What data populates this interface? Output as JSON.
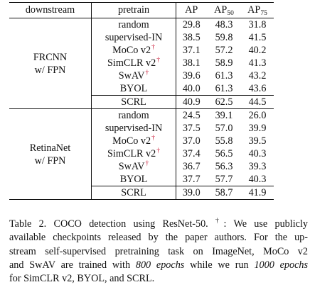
{
  "table": {
    "headers": {
      "downstream": "downstream",
      "pretrain": "pretrain",
      "ap": "AP",
      "ap50_base": "AP",
      "ap50_sub": "50",
      "ap75_base": "AP",
      "ap75_sub": "75"
    },
    "groups": [
      {
        "downstream_line1": "FRCNN",
        "downstream_line2": "w/ FPN",
        "rows": [
          {
            "pretrain": "random",
            "dagger": "",
            "ap": "29.8",
            "ap50": "48.3",
            "ap75": "31.8",
            "bold": false
          },
          {
            "pretrain": "supervised-IN",
            "dagger": "",
            "ap": "38.5",
            "ap50": "59.8",
            "ap75": "41.5",
            "bold": false
          },
          {
            "pretrain": "MoCo v2",
            "dagger": "†",
            "ap": "37.1",
            "ap50": "57.2",
            "ap75": "40.2",
            "bold": false
          },
          {
            "pretrain": "SimCLR v2",
            "dagger": "†",
            "ap": "38.1",
            "ap50": "58.9",
            "ap75": "41.3",
            "bold": false
          },
          {
            "pretrain": "SwAV",
            "dagger": "†",
            "ap": "39.6",
            "ap50": "61.3",
            "ap75": "43.2",
            "bold": false
          },
          {
            "pretrain": "BYOL",
            "dagger": "",
            "ap": "40.0",
            "ap50": "61.3",
            "ap75": "43.6",
            "bold": false
          },
          {
            "pretrain": "SCRL",
            "dagger": "",
            "ap": "40.9",
            "ap50": "62.5",
            "ap75": "44.5",
            "bold": true
          }
        ]
      },
      {
        "downstream_line1": "RetinaNet",
        "downstream_line2": "w/ FPN",
        "rows": [
          {
            "pretrain": "random",
            "dagger": "",
            "ap": "24.5",
            "ap50": "39.1",
            "ap75": "26.0",
            "bold": false
          },
          {
            "pretrain": "supervised-IN",
            "dagger": "",
            "ap": "37.5",
            "ap50": "57.0",
            "ap75": "39.9",
            "bold": false
          },
          {
            "pretrain": "MoCo v2",
            "dagger": "†",
            "ap": "37.0",
            "ap50": "55.8",
            "ap75": "39.5",
            "bold": false
          },
          {
            "pretrain": "SimCLR v2",
            "dagger": "†",
            "ap": "37.4",
            "ap50": "56.5",
            "ap75": "40.3",
            "bold": false
          },
          {
            "pretrain": "SwAV",
            "dagger": "†",
            "ap": "36.7",
            "ap50": "56.3",
            "ap75": "39.3",
            "bold": false
          },
          {
            "pretrain": "BYOL",
            "dagger": "",
            "ap": "37.7",
            "ap50": "57.7",
            "ap75": "40.3",
            "bold": false
          },
          {
            "pretrain": "SCRL",
            "dagger": "",
            "ap": "39.0",
            "ap50": "58.7",
            "ap75": "41.9",
            "bold": true
          }
        ]
      }
    ]
  },
  "caption": {
    "l1a": "Table 2. COCO detection using ResNet-50. ",
    "l1dag": "†",
    "l1b": ": We use publicly",
    "l2": "available checkpoints released by the paper authors. For the up-",
    "l3": "stream self-supervised pretraining task on ImageNet, MoCo v2",
    "l4a": "and SwAV are trained with ",
    "l4i": "800 epochs",
    "l4b": " while we run ",
    "l4i2": "1000 epochs",
    "l5": "for SimCLR v2, BYOL, and SCRL."
  }
}
